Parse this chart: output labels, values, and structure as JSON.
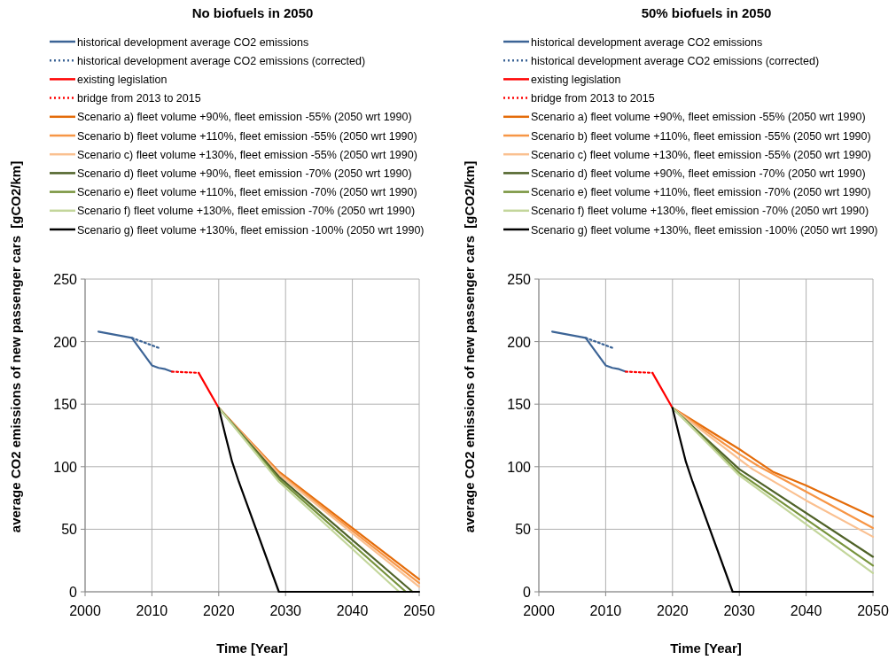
{
  "chart_data": [
    {
      "type": "line",
      "title": "No biofuels in 2050",
      "xlabel": "Time [Year]",
      "ylabel": "average CO2 emissions of new passenger cars  [gCO2/km]",
      "xlim": [
        2000,
        2050
      ],
      "xticks": [
        2000,
        2010,
        2020,
        2030,
        2040,
        2050
      ],
      "ylim": [
        0,
        250
      ],
      "yticks": [
        0,
        50,
        100,
        150,
        200,
        250
      ],
      "grid": true,
      "legend": "top",
      "series": [
        {
          "name": "historical development average CO2 emissions",
          "color": "#3c6496",
          "x": [
            2002,
            2007,
            2010,
            2011,
            2012,
            2013
          ],
          "values": [
            208,
            203,
            181,
            179,
            178,
            176
          ]
        },
        {
          "name": "historical development  average CO2 emissions (corrected)",
          "color": "#3c6496",
          "line_style": "dotted",
          "x": [
            2007,
            2011
          ],
          "values": [
            203,
            195
          ]
        },
        {
          "name": "existing legislation",
          "color": "#ff0000",
          "x": [
            2017,
            2020
          ],
          "values": [
            175,
            147
          ]
        },
        {
          "name": "bridge from 2013 to 2015",
          "color": "#ff0000",
          "line_style": "dotted",
          "x": [
            2013,
            2017
          ],
          "values": [
            176,
            175
          ]
        },
        {
          "name": "Scenario a) fleet volume +90%, fleet emission -55% (2050 wrt 1990)",
          "color": "#e46c0a",
          "x": [
            2020,
            2029,
            2050
          ],
          "values": [
            147,
            96,
            10
          ]
        },
        {
          "name": "Scenario b) fleet volume +110%, fleet emission -55% (2050 wrt 1990)",
          "color": "#f79646",
          "x": [
            2020,
            2029,
            2050
          ],
          "values": [
            147,
            95,
            7
          ]
        },
        {
          "name": "Scenario c) fleet volume +130%, fleet emission -55% (2050 wrt 1990)",
          "color": "#fac090",
          "x": [
            2020,
            2029,
            2050
          ],
          "values": [
            147,
            94,
            4
          ]
        },
        {
          "name": "Scenario d) fleet volume +90%, fleet emission -70% (2050 wrt 1990)",
          "color": "#4f6228",
          "x": [
            2020,
            2029,
            2049
          ],
          "values": [
            147,
            92,
            0
          ]
        },
        {
          "name": "Scenario e) fleet volume +110%, fleet emission -70% (2050 wrt 1990)",
          "color": "#77933c",
          "x": [
            2020,
            2029,
            2048
          ],
          "values": [
            147,
            90,
            0
          ]
        },
        {
          "name": "Scenario f) fleet volume +130%, fleet emission -70% (2050 wrt 1990)",
          "color": "#c3d69b",
          "x": [
            2020,
            2029,
            2047
          ],
          "values": [
            147,
            88,
            0
          ]
        },
        {
          "name": "Scenario g) fleet volume +130%, fleet emission -100% (2050 wrt 1990)",
          "color": "#000000",
          "x": [
            2020,
            2021,
            2022,
            2023,
            2029,
            2050
          ],
          "values": [
            147,
            125,
            104,
            88,
            0,
            0
          ]
        }
      ]
    },
    {
      "type": "line",
      "title": "50% biofuels in 2050",
      "xlabel": "Time [Year]",
      "ylabel": "average CO2 emissions of new passenger cars  [gCO2/km]",
      "xlim": [
        2000,
        2050
      ],
      "xticks": [
        2000,
        2010,
        2020,
        2030,
        2040,
        2050
      ],
      "ylim": [
        0,
        250
      ],
      "yticks": [
        0,
        50,
        100,
        150,
        200,
        250
      ],
      "grid": true,
      "legend": "top",
      "series": [
        {
          "name": "historical development average CO2 emissions",
          "color": "#3c6496",
          "x": [
            2002,
            2007,
            2010,
            2011,
            2012,
            2013
          ],
          "values": [
            208,
            203,
            181,
            179,
            178,
            176
          ]
        },
        {
          "name": "historical development  average CO2 emissions (corrected)",
          "color": "#3c6496",
          "line_style": "dotted",
          "x": [
            2007,
            2011
          ],
          "values": [
            203,
            195
          ]
        },
        {
          "name": "existing legislation",
          "color": "#ff0000",
          "x": [
            2017,
            2020
          ],
          "values": [
            175,
            147
          ]
        },
        {
          "name": "bridge from 2013 to 2015",
          "color": "#ff0000",
          "line_style": "dotted",
          "x": [
            2013,
            2017
          ],
          "values": [
            176,
            175
          ]
        },
        {
          "name": "Scenario a) fleet volume +90%, fleet emission -55% (2050 wrt 1990)",
          "color": "#e46c0a",
          "x": [
            2020,
            2030,
            2035,
            2040,
            2050
          ],
          "values": [
            147,
            114,
            96,
            85,
            60
          ]
        },
        {
          "name": "Scenario b) fleet volume +110%, fleet emission -55% (2050 wrt 1990)",
          "color": "#f79646",
          "x": [
            2020,
            2030,
            2033,
            2040,
            2050
          ],
          "values": [
            147,
            110,
            100,
            80,
            51
          ]
        },
        {
          "name": "Scenario c) fleet volume +130%, fleet emission -55% (2050 wrt 1990)",
          "color": "#fac090",
          "x": [
            2020,
            2030,
            2032,
            2040,
            2050
          ],
          "values": [
            147,
            106,
            98,
            73,
            44
          ]
        },
        {
          "name": "Scenario d) fleet volume +90%, fleet emission -70% (2050 wrt 1990)",
          "color": "#4f6228",
          "x": [
            2020,
            2030,
            2050
          ],
          "values": [
            147,
            98,
            28
          ]
        },
        {
          "name": "Scenario e) fleet volume +110%, fleet emission -70% (2050 wrt 1990)",
          "color": "#77933c",
          "x": [
            2020,
            2030,
            2050
          ],
          "values": [
            147,
            95,
            21
          ]
        },
        {
          "name": "Scenario f) fleet volume +130%, fleet emission -70% (2050 wrt 1990)",
          "color": "#c3d69b",
          "x": [
            2020,
            2030,
            2050
          ],
          "values": [
            147,
            93,
            15
          ]
        },
        {
          "name": "Scenario g) fleet volume +130%, fleet emission -100% (2050 wrt 1990)",
          "color": "#000000",
          "x": [
            2020,
            2021,
            2022,
            2023,
            2029,
            2050
          ],
          "values": [
            147,
            125,
            104,
            88,
            0,
            0
          ]
        }
      ]
    }
  ]
}
